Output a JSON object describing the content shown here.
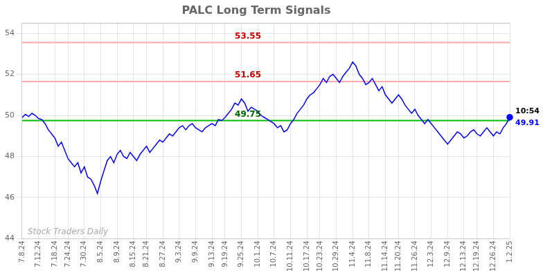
{
  "chart_data": {
    "type": "line",
    "title": "PALC Long Term Signals",
    "categories": [
      "7.8.24",
      null,
      null,
      null,
      null,
      "7.12.24",
      null,
      null,
      null,
      null,
      "7.18.24",
      null,
      null,
      null,
      "7.24.24",
      null,
      null,
      null,
      null,
      "7.30.24",
      null,
      null,
      null,
      null,
      "8.5.24",
      null,
      null,
      null,
      null,
      "8.9.24",
      null,
      null,
      null,
      null,
      "8.15.24",
      null,
      null,
      null,
      "8.21.24",
      null,
      null,
      null,
      null,
      "8.27.24",
      null,
      null,
      null,
      null,
      "9.3.24",
      null,
      null,
      null,
      null,
      "9.9.24",
      null,
      null,
      null,
      null,
      "9.13.24",
      null,
      null,
      null,
      "9.19.24",
      null,
      null,
      null,
      null,
      "9.25.24",
      null,
      null,
      null,
      null,
      "10.1.24",
      null,
      null,
      null,
      null,
      "10.7.24",
      null,
      null,
      null,
      null,
      "10.11.24",
      null,
      null,
      null,
      null,
      "10.17.24",
      null,
      null,
      null,
      "10.23.24",
      null,
      null,
      null,
      null,
      "10.29.24",
      null,
      null,
      null,
      null,
      "11.4.24",
      null,
      null,
      null,
      null,
      "11.8.24",
      null,
      null,
      null,
      null,
      "11.14.24",
      null,
      null,
      null,
      "11.20.24",
      null,
      null,
      null,
      null,
      "11.26.24",
      null,
      null,
      null,
      null,
      "12.3.24",
      null,
      null,
      null,
      null,
      "12.9.24",
      null,
      null,
      null,
      null,
      "12.13.24",
      null,
      null,
      null,
      "12.19.24",
      null,
      null,
      null,
      null,
      "12.26.24",
      null,
      null,
      null,
      null,
      "1.2.25"
    ],
    "values": [
      49.9,
      50.05,
      49.95,
      50.1,
      50.0,
      49.85,
      49.8,
      49.6,
      49.3,
      49.1,
      48.9,
      48.5,
      48.7,
      48.3,
      47.9,
      47.7,
      47.5,
      47.7,
      47.2,
      47.5,
      47.0,
      46.9,
      46.6,
      46.2,
      46.8,
      47.3,
      47.8,
      48.0,
      47.7,
      48.1,
      48.3,
      48.0,
      47.9,
      48.2,
      48.0,
      47.8,
      48.1,
      48.3,
      48.5,
      48.2,
      48.4,
      48.6,
      48.8,
      48.7,
      48.9,
      49.1,
      49.0,
      49.2,
      49.4,
      49.5,
      49.3,
      49.5,
      49.6,
      49.4,
      49.3,
      49.2,
      49.4,
      49.5,
      49.6,
      49.5,
      49.8,
      49.75,
      49.9,
      50.1,
      50.3,
      50.6,
      50.5,
      50.8,
      50.6,
      50.2,
      50.4,
      50.3,
      50.2,
      50.0,
      49.9,
      49.8,
      49.7,
      49.6,
      49.4,
      49.5,
      49.2,
      49.3,
      49.6,
      49.8,
      50.1,
      50.3,
      50.5,
      50.8,
      51.0,
      51.1,
      51.3,
      51.5,
      51.8,
      51.6,
      51.9,
      52.0,
      51.8,
      51.6,
      51.9,
      52.1,
      52.3,
      52.6,
      52.4,
      52.0,
      51.8,
      51.5,
      51.6,
      51.8,
      51.5,
      51.2,
      51.4,
      51.0,
      50.8,
      50.6,
      50.8,
      51.0,
      50.8,
      50.5,
      50.3,
      50.1,
      50.3,
      50.0,
      49.8,
      49.6,
      49.8,
      49.6,
      49.4,
      49.2,
      49.0,
      48.8,
      48.6,
      48.8,
      49.0,
      49.2,
      49.1,
      48.9,
      49.0,
      49.2,
      49.3,
      49.1,
      49.0,
      49.2,
      49.4,
      49.2,
      49.0,
      49.2,
      49.1,
      49.4,
      49.6,
      49.91
    ],
    "color": "blue",
    "ylim": [
      44,
      54.5
    ],
    "yticks": [
      44,
      46,
      48,
      50,
      52,
      54
    ],
    "grid": true,
    "reference_lines": [
      {
        "value": 49.75,
        "label": "49.75",
        "color": "#00bb00",
        "label_color": "#006600"
      },
      {
        "value": 51.65,
        "label": "51.65",
        "color": "#ffaaaa",
        "label_color": "#cc0000"
      },
      {
        "value": 53.55,
        "label": "53.55",
        "color": "#ffaaaa",
        "label_color": "#cc0000"
      }
    ],
    "endpoint": {
      "time_label": "10:54",
      "price_label": "49.91",
      "color": "blue"
    },
    "watermark": {
      "text": "Stock Traders Daily",
      "color": "#aaaaaa"
    }
  }
}
